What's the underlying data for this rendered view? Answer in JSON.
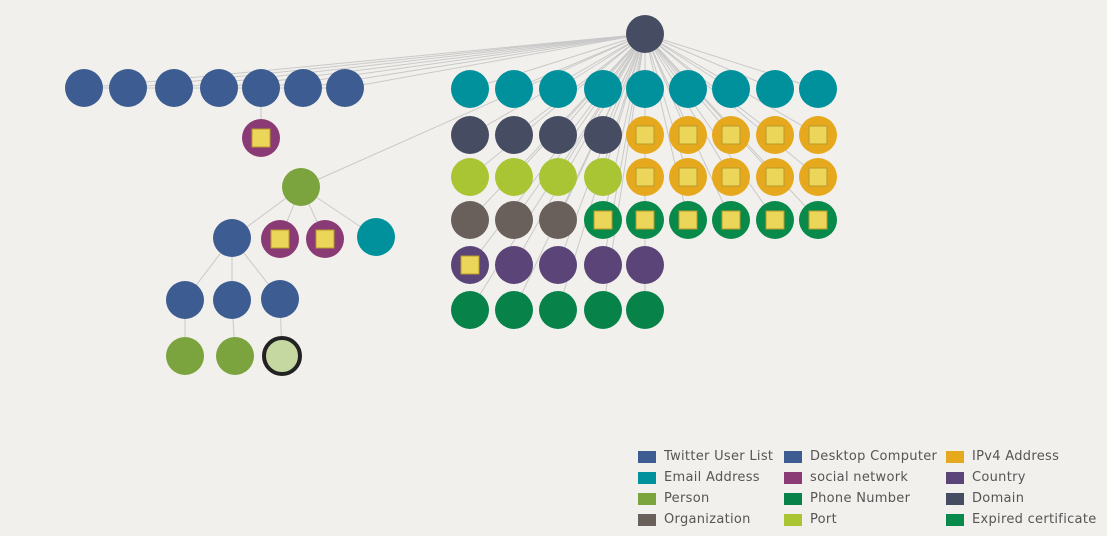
{
  "colors": {
    "twitter_user_list": "#3d5c91",
    "desktop_computer": "#3d5c91",
    "ipv4_address": "#e6a91e",
    "email_address": "#00919c",
    "social_network": "#8a3a74",
    "country": "#5a4478",
    "person": "#7ba33e",
    "phone_number": "#07834a",
    "domain": "#464d63",
    "organization": "#6a605b",
    "port": "#a9c534",
    "expired_certificate": "#078a4a",
    "light_person": "#c6d8a2",
    "marker": "#ecd65a",
    "edge": "#c9c9c9"
  },
  "legend": [
    {
      "label": "Twitter User List",
      "color": "#3d5c91"
    },
    {
      "label": "Desktop Computer",
      "color": "#3d5c91"
    },
    {
      "label": "IPv4 Address",
      "color": "#e6a91e"
    },
    {
      "label": "Email Address",
      "color": "#00919c"
    },
    {
      "label": "social network",
      "color": "#8a3a74"
    },
    {
      "label": "Country",
      "color": "#5a4478"
    },
    {
      "label": "Person",
      "color": "#7ba33e"
    },
    {
      "label": "Phone Number",
      "color": "#07834a"
    },
    {
      "label": "Domain",
      "color": "#464d63"
    },
    {
      "label": "Organization",
      "color": "#6a605b"
    },
    {
      "label": "Port",
      "color": "#a9c534"
    },
    {
      "label": "Expired certificate",
      "color": "#078a4a"
    }
  ]
}
